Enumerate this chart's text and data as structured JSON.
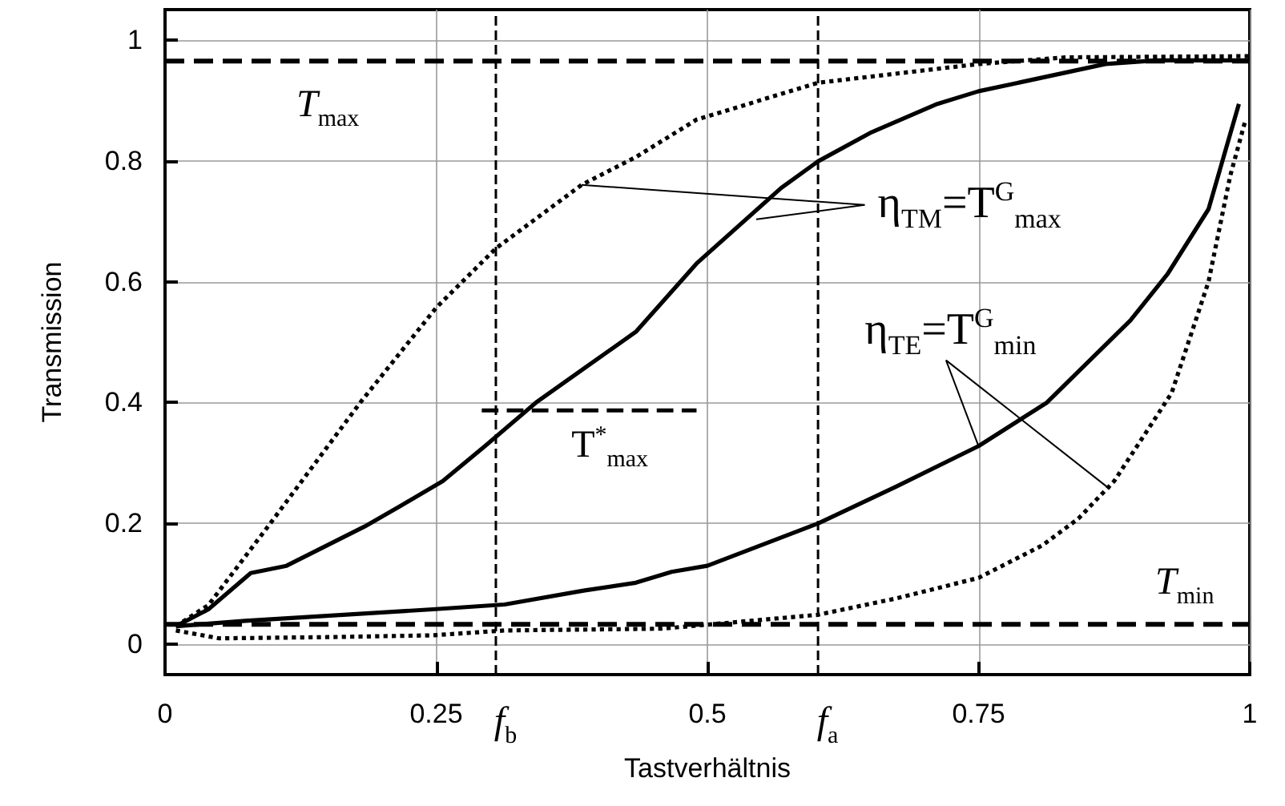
{
  "chart_data": {
    "type": "line",
    "xlabel": "Tastverhältnis",
    "ylabel": "Transmission",
    "xlim": [
      0,
      1
    ],
    "ylim": [
      -0.05,
      1.05
    ],
    "xticks": [
      0,
      0.25,
      0.5,
      0.75,
      1
    ],
    "yticks": [
      0,
      0.2,
      0.4,
      0.6,
      0.8,
      1
    ],
    "grid": true,
    "marker": "none",
    "series": [
      {
        "color": "#000000",
        "line_style": "solid",
        "x": [
          0.01,
          0.04,
          0.079,
          0.112,
          0.184,
          0.218,
          0.256,
          0.295,
          0.342,
          0.386,
          0.434,
          0.49,
          0.568,
          0.602,
          0.65,
          0.712,
          0.75,
          0.867,
          0.914,
          1
        ],
        "values": [
          0.03,
          0.058,
          0.118,
          0.13,
          0.195,
          0.23,
          0.27,
          0.328,
          0.4,
          0.456,
          0.517,
          0.63,
          0.755,
          0.799,
          0.846,
          0.894,
          0.915,
          0.96,
          0.966,
          0.966
        ]
      },
      {
        "color": "#000000",
        "line_style": "dotted",
        "x": [
          0.01,
          0.04,
          0.097,
          0.18,
          0.25,
          0.305,
          0.384,
          0.434,
          0.49,
          0.602,
          0.75,
          0.83,
          1
        ],
        "values": [
          0.03,
          0.065,
          0.2,
          0.4,
          0.557,
          0.655,
          0.76,
          0.806,
          0.868,
          0.929,
          0.96,
          0.971,
          0.973
        ]
      },
      {
        "color": "#000000",
        "line_style": "solid",
        "x": [
          0.01,
          0.074,
          0.247,
          0.313,
          0.386,
          0.434,
          0.467,
          0.5,
          0.602,
          0.674,
          0.75,
          0.813,
          0.89,
          0.924,
          0.962,
          0.99
        ],
        "values": [
          0.03,
          0.039,
          0.058,
          0.066,
          0.089,
          0.102,
          0.12,
          0.13,
          0.2,
          0.261,
          0.328,
          0.4,
          0.536,
          0.612,
          0.72,
          0.894
        ]
      },
      {
        "color": "#000000",
        "line_style": "dotted",
        "x": [
          0.01,
          0.05,
          0.15,
          0.247,
          0.313,
          0.458,
          0.54,
          0.602,
          0.674,
          0.75,
          0.809,
          0.842,
          0.875,
          0.914,
          0.928,
          0.962,
          0.982,
          0.996
        ],
        "values": [
          0.023,
          0.01,
          0.012,
          0.015,
          0.023,
          0.026,
          0.039,
          0.049,
          0.076,
          0.11,
          0.164,
          0.208,
          0.27,
          0.377,
          0.416,
          0.6,
          0.775,
          0.867
        ]
      },
      {
        "color": "#000000",
        "line_style": "dashed",
        "x": [
          0.292,
          0.49
        ],
        "values": [
          0.387,
          0.387
        ]
      }
    ],
    "ref_lines": [
      {
        "axis": "y",
        "value": 0.965,
        "label": "T$_{max}$",
        "line_style": "dashed",
        "color": "#000000"
      },
      {
        "axis": "y",
        "value": 0.033,
        "label": "T$_{min}$",
        "line_style": "dashed",
        "color": "#000000"
      },
      {
        "axis": "x",
        "value": 0.305,
        "label": "f$_{b}$",
        "line_style": "dashed",
        "color": "#000000"
      },
      {
        "axis": "x",
        "value": 0.602,
        "label": "f$_{a}$",
        "line_style": "dashed",
        "color": "#000000"
      }
    ],
    "annotations": [
      "T$^{*}$$_{max}$",
      {
        "text": "η$_{TM}$=T$^{G}$$_{max}$",
        "x": 0.384,
        "y": 0.76
      },
      {
        "text": "η$_{TE}$=T$^{G}$$_{min}$",
        "x": 0.75,
        "y": 0.328
      }
    ]
  }
}
